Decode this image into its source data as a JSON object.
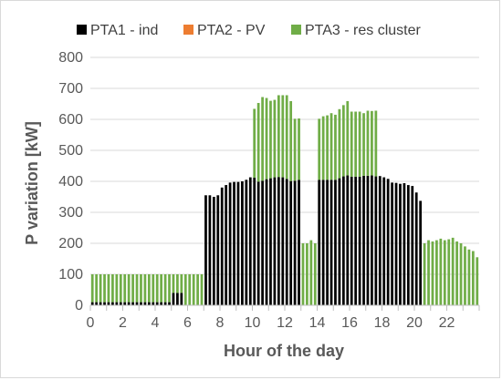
{
  "chart_data": {
    "type": "bar",
    "stacked": true,
    "title": "",
    "xlabel": "Hour of the day",
    "ylabel": "P variation [kW]",
    "ylim": [
      0,
      800
    ],
    "yticks": [
      0,
      100,
      200,
      300,
      400,
      500,
      600,
      700,
      800
    ],
    "x_step_hours": 0.25,
    "xticks": [
      0,
      2,
      4,
      6,
      8,
      10,
      12,
      14,
      16,
      18,
      20,
      22
    ],
    "grid": true,
    "legend_position": "top",
    "series": [
      {
        "name": "PTA1 - ind",
        "color": "#000000",
        "values": [
          10,
          10,
          10,
          10,
          10,
          10,
          10,
          10,
          10,
          10,
          10,
          10,
          10,
          10,
          10,
          10,
          10,
          10,
          10,
          10,
          40,
          40,
          40,
          0,
          0,
          0,
          0,
          0,
          355,
          355,
          350,
          355,
          380,
          388,
          396,
          398,
          398,
          400,
          405,
          413,
          412,
          399,
          402,
          407,
          410,
          413,
          414,
          413,
          408,
          401,
          402,
          405,
          0,
          0,
          0,
          0,
          405,
          405,
          405,
          405,
          405,
          410,
          416,
          419,
          415,
          415,
          415,
          418,
          418,
          419,
          416,
          417,
          413,
          408,
          396,
          395,
          392,
          394,
          388,
          385,
          364,
          337,
          0,
          0,
          0,
          0,
          0,
          0,
          0,
          0,
          0,
          0,
          0,
          0,
          0,
          0
        ]
      },
      {
        "name": "PTA2 - PV",
        "color": "#ed7d31",
        "values": [
          0,
          0,
          0,
          0,
          0,
          0,
          0,
          0,
          0,
          0,
          0,
          0,
          0,
          0,
          0,
          0,
          0,
          0,
          0,
          0,
          0,
          0,
          0,
          0,
          0,
          0,
          0,
          0,
          0,
          0,
          0,
          0,
          0,
          0,
          0,
          0,
          0,
          0,
          0,
          0,
          0,
          0,
          0,
          0,
          0,
          0,
          0,
          0,
          0,
          0,
          0,
          0,
          0,
          0,
          0,
          0,
          0,
          0,
          0,
          0,
          0,
          0,
          0,
          0,
          0,
          0,
          0,
          0,
          0,
          0,
          0,
          0,
          0,
          0,
          0,
          0,
          0,
          0,
          0,
          0,
          0,
          0,
          0,
          0,
          0,
          0,
          0,
          0,
          0,
          0,
          0,
          0,
          0,
          0,
          0,
          0
        ]
      },
      {
        "name": "PTA3 - res cluster",
        "color": "#70ad47",
        "values": [
          90,
          90,
          90,
          90,
          90,
          90,
          90,
          90,
          90,
          90,
          90,
          90,
          90,
          90,
          90,
          90,
          90,
          90,
          90,
          90,
          60,
          60,
          60,
          100,
          100,
          100,
          100,
          100,
          0,
          0,
          0,
          0,
          0,
          0,
          0,
          0,
          0,
          0,
          0,
          0,
          222,
          254,
          270,
          262,
          250,
          250,
          264,
          265,
          270,
          258,
          200,
          198,
          200,
          200,
          210,
          200,
          197,
          205,
          208,
          215,
          210,
          223,
          230,
          240,
          210,
          210,
          210,
          202,
          210,
          208,
          212,
          0,
          0,
          0,
          0,
          0,
          0,
          0,
          0,
          0,
          0,
          0,
          200,
          210,
          206,
          210,
          215,
          210,
          213,
          218,
          206,
          200,
          190,
          180,
          175,
          155
        ]
      }
    ]
  }
}
